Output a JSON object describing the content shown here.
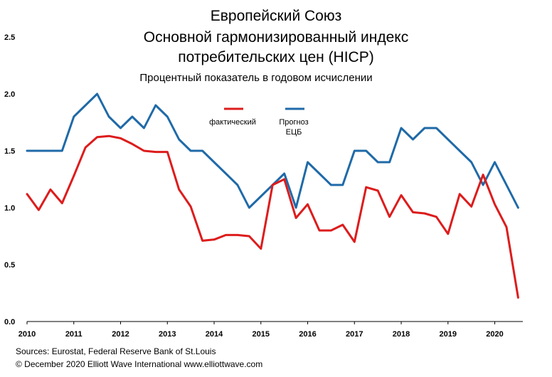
{
  "title_lines": [
    "Европейский Союз",
    "Основной гармонизированный индекс",
    "потребительских цен (HICP)"
  ],
  "subtitle": "Процентный показатель в годовом исчислении",
  "footer": {
    "sources": "Sources: Eurostat, Federal Reserve Bank of St.Louis",
    "copyright": "© December 2020   Elliott Wave International   www.elliottwave.com"
  },
  "colors": {
    "actual": "#dd1c1c",
    "forecast": "#1f6aa8"
  },
  "chart_data": {
    "type": "line",
    "title": "Европейский Союз Основной гармонизированный индекс потребительских цен (HICP)",
    "subtitle": "Процентный показатель в годовом исчислении",
    "x_ticks": [
      "2010",
      "2011",
      "2012",
      "2013",
      "2014",
      "2015",
      "2016",
      "2017",
      "2018",
      "2019",
      "2020"
    ],
    "xlim": [
      2010,
      2020.6
    ],
    "ylim": [
      0,
      2.5
    ],
    "y_ticks": [
      "0.0",
      "0.5",
      "1.0",
      "1.5",
      "2.0",
      "2.5"
    ],
    "legend": {
      "placement": "top-center"
    },
    "series": [
      {
        "name": "фактический",
        "color": "#dd1c1c",
        "x": [
          2010.0,
          2010.25,
          2010.5,
          2010.75,
          2011.0,
          2011.25,
          2011.5,
          2011.75,
          2012.0,
          2012.25,
          2012.5,
          2012.75,
          2013.0,
          2013.25,
          2013.5,
          2013.75,
          2014.0,
          2014.25,
          2014.5,
          2014.75,
          2015.0,
          2015.25,
          2015.5,
          2015.75,
          2016.0,
          2016.25,
          2016.5,
          2016.75,
          2017.0,
          2017.25,
          2017.5,
          2017.75,
          2018.0,
          2018.25,
          2018.5,
          2018.75,
          2019.0,
          2019.25,
          2019.5,
          2019.75,
          2020.0,
          2020.25,
          2020.5
        ],
        "y": [
          1.12,
          0.98,
          1.16,
          1.04,
          1.28,
          1.53,
          1.62,
          1.63,
          1.61,
          1.56,
          1.5,
          1.49,
          1.49,
          1.16,
          1.01,
          0.71,
          0.72,
          0.76,
          0.76,
          0.75,
          0.64,
          1.2,
          1.25,
          0.91,
          1.03,
          0.8,
          0.8,
          0.85,
          0.7,
          1.18,
          1.15,
          0.92,
          1.11,
          0.96,
          0.95,
          0.92,
          0.77,
          1.12,
          1.01,
          1.29,
          1.03,
          0.83,
          0.21
        ]
      },
      {
        "name": "Прогноз ЕЦБ",
        "color": "#1f6aa8",
        "x": [
          2010.0,
          2010.25,
          2010.5,
          2010.75,
          2011.0,
          2011.25,
          2011.5,
          2011.75,
          2012.0,
          2012.25,
          2012.5,
          2012.75,
          2013.0,
          2013.25,
          2013.5,
          2013.75,
          2014.0,
          2014.25,
          2014.5,
          2014.75,
          2015.0,
          2015.25,
          2015.5,
          2015.75,
          2016.0,
          2016.25,
          2016.5,
          2016.75,
          2017.0,
          2017.25,
          2017.5,
          2017.75,
          2018.0,
          2018.25,
          2018.5,
          2018.75,
          2019.0,
          2019.25,
          2019.5,
          2019.75,
          2020.0,
          2020.25,
          2020.5
        ],
        "y": [
          1.5,
          1.5,
          1.5,
          1.5,
          1.8,
          1.9,
          2.0,
          1.8,
          1.7,
          1.8,
          1.7,
          1.9,
          1.8,
          1.6,
          1.5,
          1.5,
          1.4,
          1.3,
          1.2,
          1.0,
          1.1,
          1.2,
          1.3,
          1.0,
          1.4,
          1.3,
          1.2,
          1.2,
          1.5,
          1.5,
          1.4,
          1.4,
          1.7,
          1.6,
          1.7,
          1.7,
          1.6,
          1.5,
          1.4,
          1.2,
          1.4,
          1.2,
          1.0
        ]
      }
    ]
  }
}
